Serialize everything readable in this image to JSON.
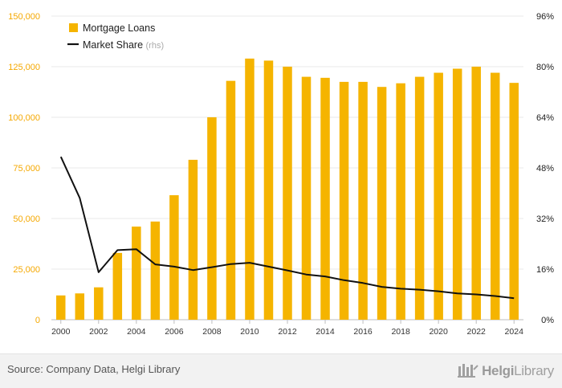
{
  "chart_data": {
    "type": "bar",
    "x": [
      2000,
      2001,
      2002,
      2003,
      2004,
      2005,
      2006,
      2007,
      2008,
      2009,
      2010,
      2011,
      2012,
      2013,
      2014,
      2015,
      2016,
      2017,
      2018,
      2019,
      2020,
      2021,
      2022,
      2023,
      2024
    ],
    "x_tick_labels": [
      "2000",
      "2002",
      "2004",
      "2006",
      "2008",
      "2010",
      "2012",
      "2014",
      "2016",
      "2018",
      "2020",
      "2022",
      "2024"
    ],
    "y_left": {
      "ylim": [
        0,
        150000
      ],
      "ticks": [
        "0",
        "25,000",
        "50,000",
        "75,000",
        "100,000",
        "125,000",
        "150,000"
      ]
    },
    "y_right": {
      "ylim": [
        0,
        96
      ],
      "ticks": [
        "0%",
        "16%",
        "32%",
        "48%",
        "64%",
        "80%",
        "96%"
      ]
    },
    "series": [
      {
        "name": "Mortgage Loans",
        "type": "bar",
        "axis": "left",
        "color": "#f5b400",
        "values": [
          12000,
          13000,
          16000,
          33000,
          46000,
          48500,
          61500,
          79000,
          100000,
          118000,
          129000,
          128000,
          125000,
          120000,
          119500,
          117500,
          117500,
          115000,
          116800,
          120000,
          122000,
          124000,
          125000,
          122000,
          117000
        ]
      },
      {
        "name": "Market Share",
        "name_suffix": "(rhs)",
        "type": "line",
        "axis": "right",
        "color": "#111111",
        "values": [
          51.5,
          38.5,
          15.0,
          22.0,
          22.3,
          17.5,
          16.8,
          15.7,
          16.6,
          17.6,
          18.0,
          16.8,
          15.6,
          14.3,
          13.7,
          12.5,
          11.6,
          10.4,
          9.8,
          9.5,
          9.0,
          8.3,
          8.0,
          7.5,
          6.8
        ]
      }
    ],
    "legend": "top-left",
    "grid": true
  },
  "footer": {
    "source": "Source: Company Data, Helgi Library",
    "logo_text_bold": "Helgi",
    "logo_text_rest": "Library"
  },
  "icons": {
    "logo": "helgi-library-logo-icon"
  }
}
